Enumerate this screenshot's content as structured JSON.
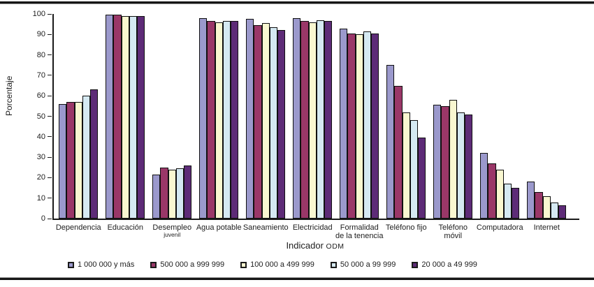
{
  "chart_data": {
    "type": "bar",
    "title": "",
    "ylabel": "Porcentaje",
    "xlabel": "Indicador ODM",
    "xlabel_main": "Indicador",
    "xlabel_acronym": "ODM",
    "ylim": [
      0,
      100
    ],
    "ytick_step": 10,
    "grid": false,
    "legend_position": "bottom",
    "categories": [
      {
        "label_lines": [
          "Dependencia"
        ],
        "small_second_line": false
      },
      {
        "label_lines": [
          "Educación"
        ],
        "small_second_line": false
      },
      {
        "label_lines": [
          "Desempleo",
          "juvenil"
        ],
        "small_second_line": true
      },
      {
        "label_lines": [
          "Agua potable"
        ],
        "small_second_line": false
      },
      {
        "label_lines": [
          "Saneamiento"
        ],
        "small_second_line": false
      },
      {
        "label_lines": [
          "Electricidad"
        ],
        "small_second_line": false
      },
      {
        "label_lines": [
          "Formalidad",
          "de la tenencia"
        ],
        "small_second_line": false
      },
      {
        "label_lines": [
          "Teléfono fijo"
        ],
        "small_second_line": false
      },
      {
        "label_lines": [
          "Teléfono",
          "móvil"
        ],
        "small_second_line": false
      },
      {
        "label_lines": [
          "Computadora"
        ],
        "small_second_line": false
      },
      {
        "label_lines": [
          "Internet"
        ],
        "small_second_line": false
      }
    ],
    "series": [
      {
        "name": "1 000 000 y más",
        "color": "#9b99cc",
        "values": [
          56,
          99.5,
          21.5,
          98,
          97.5,
          98,
          93,
          75,
          55.5,
          32,
          18
        ]
      },
      {
        "name": "500 000 a 999 999",
        "color": "#9a3768",
        "values": [
          57,
          99.5,
          25,
          96.5,
          94.5,
          96.5,
          90.5,
          65,
          55,
          27,
          13
        ]
      },
      {
        "name": "100 000 a 499 999",
        "color": "#f9f7d0",
        "values": [
          57,
          99,
          24,
          96,
          95.5,
          96,
          90,
          52,
          58,
          24,
          11
        ]
      },
      {
        "name": "50 000 a 99 999",
        "color": "#d5e9f2",
        "values": [
          60,
          99,
          24.5,
          96.5,
          93.5,
          97,
          91.5,
          48,
          52,
          17,
          8
        ]
      },
      {
        "name": "20 000 a 49 999",
        "color": "#5d2b77",
        "values": [
          63,
          99,
          26,
          96.5,
          92,
          96.5,
          90.5,
          39.5,
          51,
          15,
          6.5
        ]
      }
    ]
  }
}
